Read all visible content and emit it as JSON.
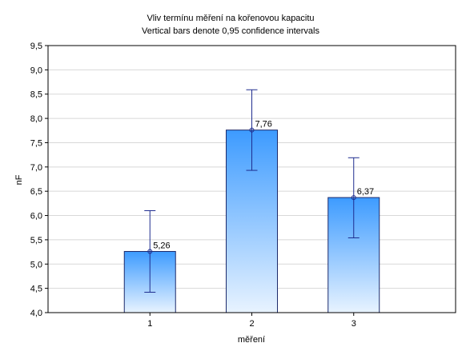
{
  "chart_data": {
    "type": "bar",
    "title": "Vliv termínu měření na kořenovou kapacitu",
    "subtitle": "Vertical bars denote 0,95 confidence intervals",
    "xlabel": "měření",
    "ylabel": "nF",
    "categories": [
      "1",
      "2",
      "3"
    ],
    "values": [
      5.26,
      7.76,
      6.37
    ],
    "value_labels": [
      "5,26",
      "7,76",
      "6,37"
    ],
    "ci_low": [
      4.42,
      6.93,
      5.54
    ],
    "ci_high": [
      6.1,
      8.59,
      7.19
    ],
    "ylim": [
      4.0,
      9.5
    ],
    "yticks": [
      "4,0",
      "4,5",
      "5,0",
      "5,5",
      "6,0",
      "6,5",
      "7,0",
      "7,5",
      "8,0",
      "8,5",
      "9,0",
      "9,5"
    ],
    "grid": true,
    "colors": {
      "bar_top": "#3d9bff",
      "bar_bottom": "#e8f3ff",
      "bar_stroke": "#1c2a6b",
      "errorbar": "#1f2d8f",
      "grid": "#d8d8d8"
    }
  }
}
